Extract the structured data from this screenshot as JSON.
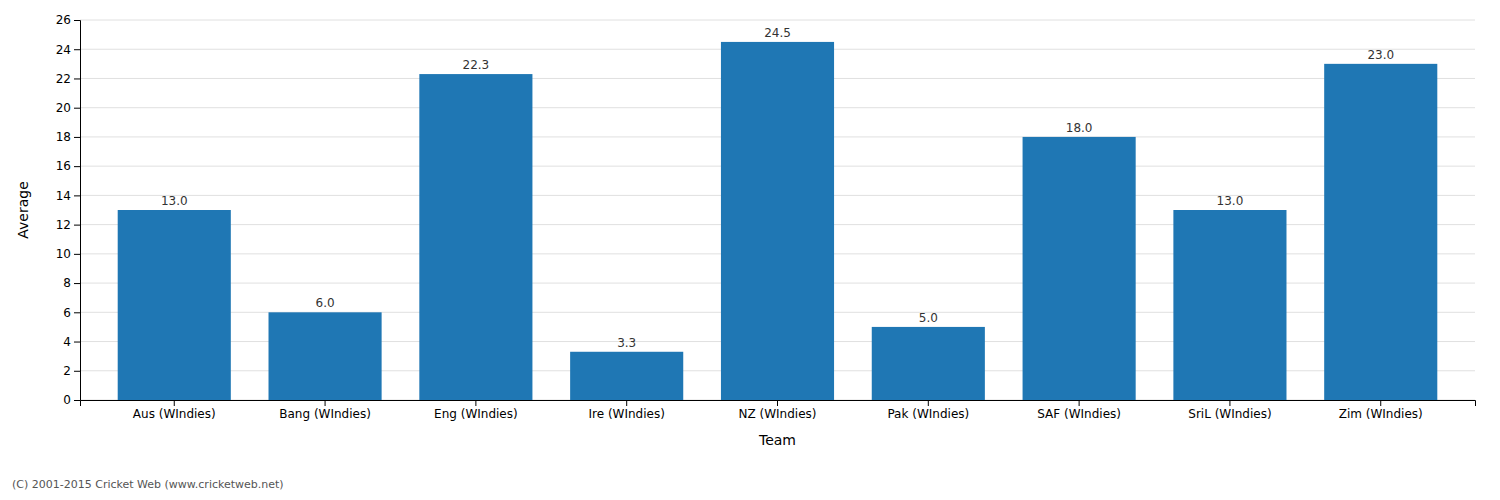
{
  "chart_data": {
    "type": "bar",
    "xlabel": "Team",
    "ylabel": "Average",
    "footnote": "(C) 2001-2015 Cricket Web (www.cricketweb.net)",
    "categories": [
      "Aus (WIndies)",
      "Bang (WIndies)",
      "Eng (WIndies)",
      "Ire (WIndies)",
      "NZ (WIndies)",
      "Pak (WIndies)",
      "SAF (WIndies)",
      "SriL (WIndies)",
      "Zim (WIndies)"
    ],
    "values": [
      13.0,
      6.0,
      22.3,
      3.3,
      24.5,
      5.0,
      18.0,
      13.0,
      23.0
    ],
    "value_labels": [
      "13.0",
      "6.0",
      "22.3",
      "3.3",
      "24.5",
      "5.0",
      "18.0",
      "13.0",
      "23.0"
    ],
    "data_labels": true,
    "ylim": [
      0,
      26
    ],
    "yticks": [
      0,
      2,
      4,
      6,
      8,
      10,
      12,
      14,
      16,
      18,
      20,
      22,
      24,
      26
    ],
    "grid": true
  }
}
